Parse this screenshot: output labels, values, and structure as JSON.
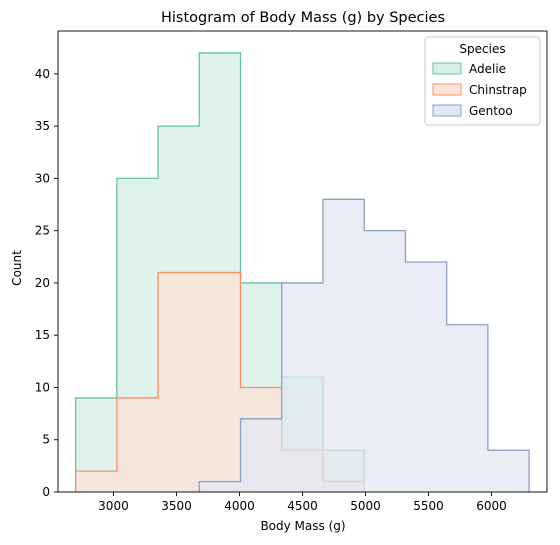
{
  "chart_data": {
    "type": "histogram",
    "title": "Histogram of Body Mass (g) by Species",
    "xlabel": "Body Mass (g)",
    "ylabel": "Count",
    "xlim": [
      2560,
      6440
    ],
    "ylim": [
      0,
      44.1
    ],
    "xticks": [
      3000,
      3500,
      4000,
      4500,
      5000,
      5500,
      6000
    ],
    "yticks": [
      0,
      5,
      10,
      15,
      20,
      25,
      30,
      35,
      40
    ],
    "bin_edges": [
      2700,
      3027,
      3354,
      3681,
      4008,
      4335,
      4663,
      4990,
      5317,
      5644,
      5971,
      6298
    ],
    "legend": {
      "title": "Species",
      "position": "top-right"
    },
    "series": [
      {
        "name": "Adelie",
        "counts": [
          9,
          30,
          35,
          42,
          20,
          11,
          4,
          0,
          0,
          0,
          0
        ],
        "edge": "#66c2a5",
        "fill": "#d5eee6"
      },
      {
        "name": "Chinstrap",
        "counts": [
          2,
          9,
          21,
          21,
          10,
          4,
          1,
          0,
          0,
          0,
          0
        ],
        "edge": "#fc8d62",
        "fill": "#fee3d8"
      },
      {
        "name": "Gentoo",
        "counts": [
          0,
          0,
          0,
          1,
          7,
          20,
          28,
          25,
          22,
          16,
          4
        ],
        "edge": "#8da0cb",
        "fill": "#e3e7f3"
      }
    ]
  }
}
